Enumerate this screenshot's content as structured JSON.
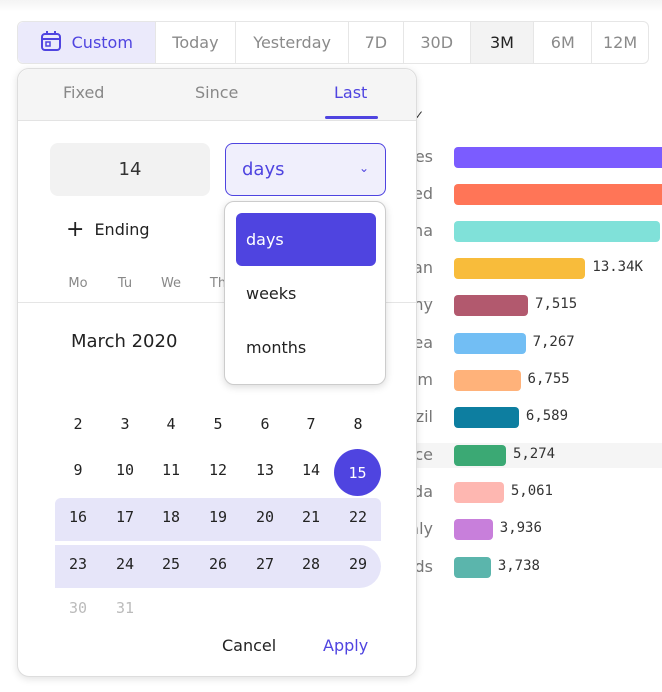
{
  "range_buttons": [
    {
      "label": "Custom",
      "icon": "calendar-icon",
      "state": "active"
    },
    {
      "label": "Today"
    },
    {
      "label": "Yesterday"
    },
    {
      "label": "7D"
    },
    {
      "label": "30D"
    },
    {
      "label": "3M",
      "state": "selected"
    },
    {
      "label": "6M"
    },
    {
      "label": "12M"
    }
  ],
  "picker": {
    "tabs": [
      "Fixed",
      "Since",
      "Last"
    ],
    "active_tab": "Last",
    "amount": "14",
    "unit": "days",
    "unit_options": [
      "days",
      "weeks",
      "months"
    ],
    "ending_label": "Ending",
    "weekdays": [
      "Mo",
      "Tu",
      "We",
      "Th"
    ],
    "month": "March 2020",
    "weeks": [
      [
        "2",
        "3",
        "4",
        "5",
        "6",
        "7",
        "8"
      ],
      [
        "9",
        "10",
        "11",
        "12",
        "13",
        "14",
        "15"
      ],
      [
        "16",
        "17",
        "18",
        "19",
        "20",
        "21",
        "22"
      ],
      [
        "23",
        "24",
        "25",
        "26",
        "27",
        "28",
        "29"
      ],
      [
        "30",
        "31"
      ]
    ],
    "today": "15",
    "cancel": "Cancel",
    "apply": "Apply"
  },
  "chart_data": {
    "type": "bar",
    "orientation": "horizontal",
    "categories": [
      "es",
      "ed",
      "na",
      "an",
      "ny",
      "ea",
      "m",
      "zil",
      "ce",
      "da",
      "aly",
      "ds"
    ],
    "values": [
      null,
      null,
      null,
      13340,
      7515,
      7267,
      6755,
      6589,
      5274,
      5061,
      3936,
      3738
    ],
    "value_labels": [
      "",
      "",
      "",
      "13.34K",
      "7,515",
      "7,267",
      "6,755",
      "6,589",
      "5,274",
      "5,061",
      "3,936",
      "3,738"
    ],
    "colors": [
      "#7b5cff",
      "#ff7557",
      "#80e1d9",
      "#f8bc3b",
      "#b2596e",
      "#72bef4",
      "#ffb27a",
      "#0d7ea0",
      "#3ba974",
      "#feb7b1",
      "#c87fdb",
      "#5bb5ac"
    ]
  }
}
